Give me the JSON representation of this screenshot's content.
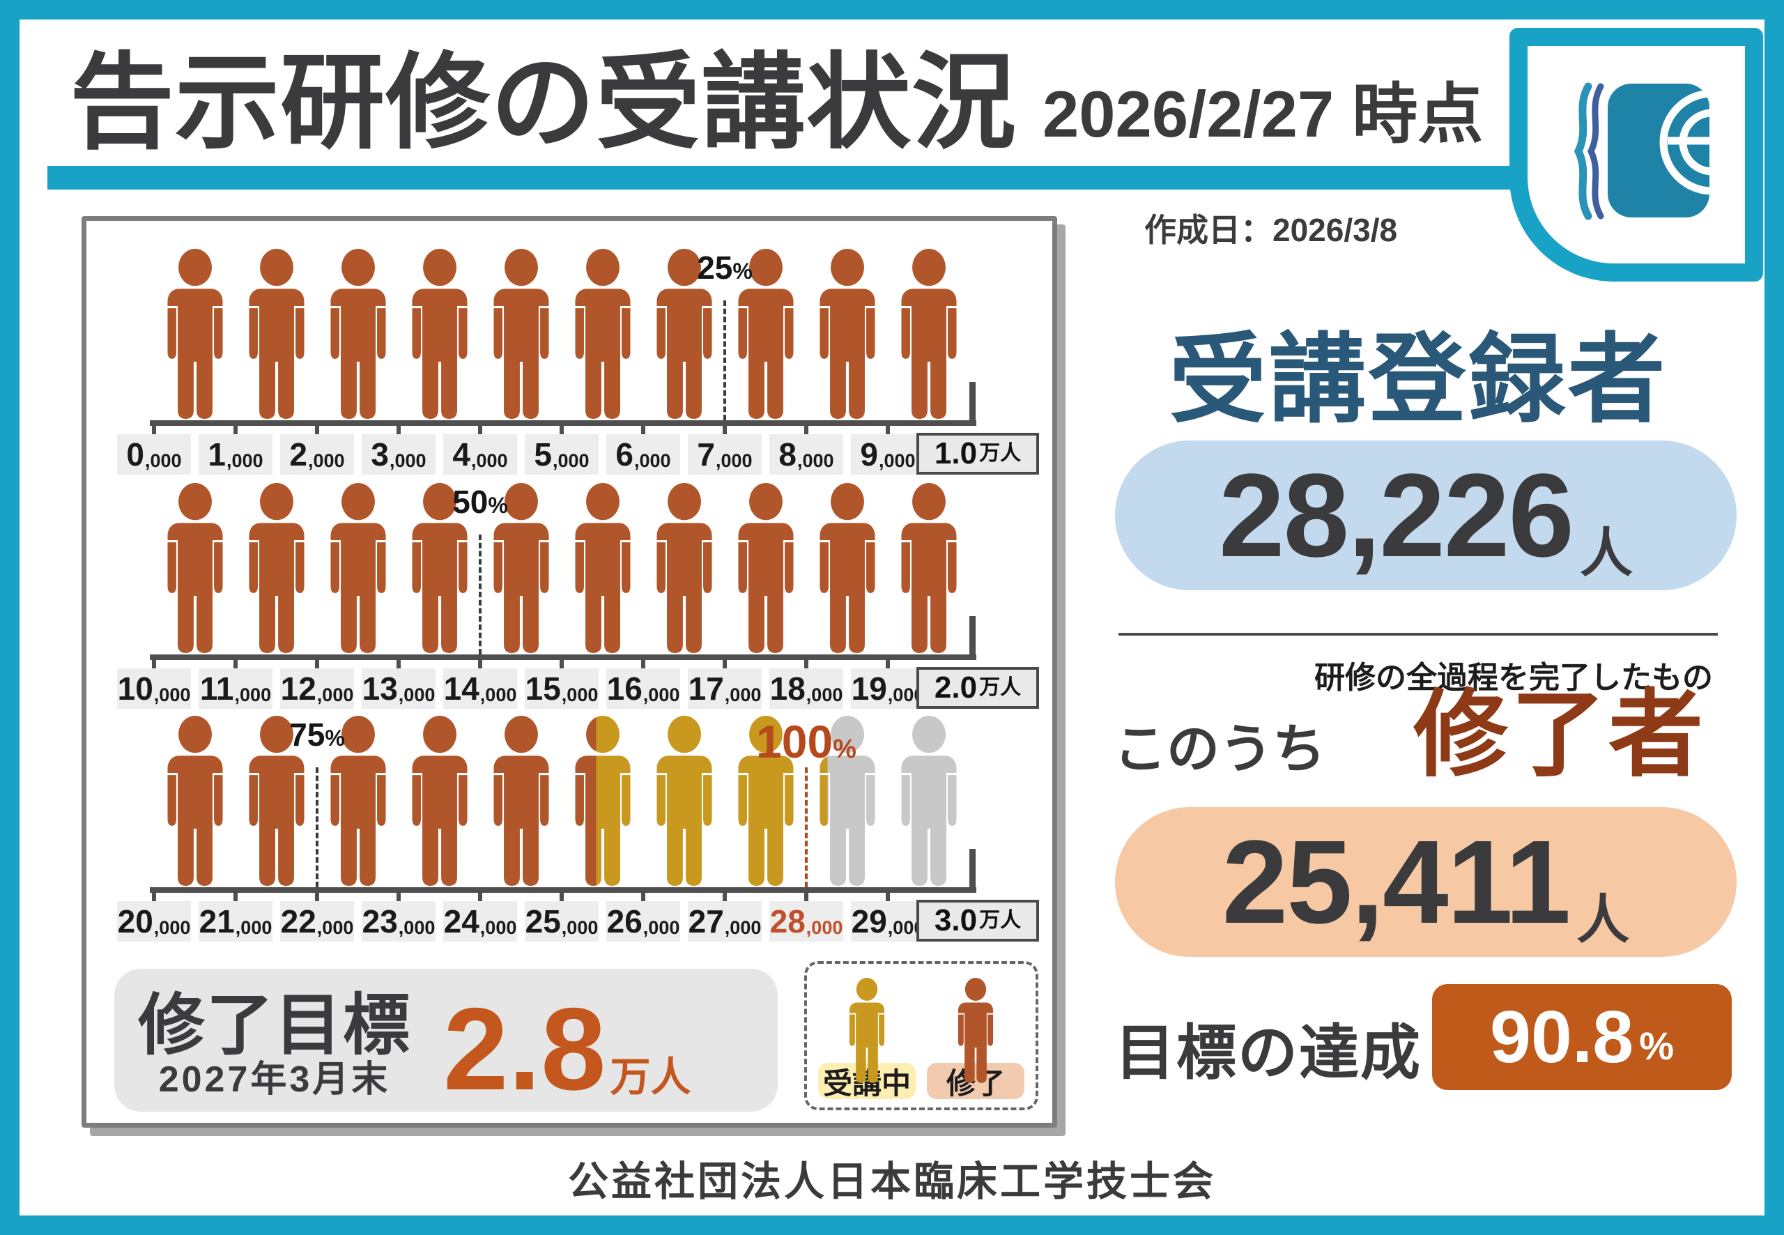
{
  "header": {
    "title": "告示研修の受講状況",
    "as_of": "2026/2/27 時点",
    "created": "作成日：2026/3/8"
  },
  "stats": {
    "registered": {
      "label": "受講登録者",
      "value": "28,226",
      "unit": "人"
    },
    "completed": {
      "note": "研修の全過程を完了したもの",
      "prefix": "このうち",
      "label": "修了者",
      "value": "25,411",
      "unit": "人"
    },
    "achievement": {
      "label": "目標の達成",
      "value": "90.8",
      "unit": "%"
    }
  },
  "goal_box": {
    "title": "修了目標",
    "deadline": "2027年3月末",
    "value": "2.8",
    "unit": "万人"
  },
  "legend": {
    "in_progress": "受講中",
    "completed": "修了"
  },
  "footer": {
    "org": "公益社団法人日本臨床工学技士会"
  },
  "chart_data": {
    "type": "pictograph",
    "unit_per_icon": 1000,
    "completed": 25411,
    "registered": 28226,
    "goal": 28000,
    "icon_colors": {
      "completed": "#b0562a",
      "in_progress": "#c8981f",
      "none": "#c8c8c8"
    },
    "rows": [
      {
        "start": 0,
        "tick_labels": [
          "0,000",
          "1,000",
          "2,000",
          "3,000",
          "4,000",
          "5,000",
          "6,000",
          "7,000",
          "8,000",
          "9,000"
        ],
        "end_label": "1.0万人",
        "markers": [
          {
            "label": "25%",
            "value": 7000,
            "accent": false
          }
        ]
      },
      {
        "start": 10000,
        "tick_labels": [
          "10,000",
          "11,000",
          "12,000",
          "13,000",
          "14,000",
          "15,000",
          "16,000",
          "17,000",
          "18,000",
          "19,000"
        ],
        "end_label": "2.0万人",
        "markers": [
          {
            "label": "50%",
            "value": 14000,
            "accent": false
          }
        ]
      },
      {
        "start": 20000,
        "tick_labels": [
          "20,000",
          "21,000",
          "22,000",
          "23,000",
          "24,000",
          "25,000",
          "26,000",
          "27,000",
          "28,000",
          "29,000"
        ],
        "end_label": "3.0万人",
        "accent_tick": "28,000",
        "markers": [
          {
            "label": "75%",
            "value": 22000,
            "accent": false
          },
          {
            "label": "100%",
            "value": 28000,
            "accent": true
          }
        ]
      }
    ]
  },
  "colors": {
    "frame": "#18a2c6",
    "title": "#3b3b3d",
    "blue_heading": "#2a5878",
    "blue_pill": "#c3d9ed",
    "brown_heading": "#8e3a16",
    "peach_pill": "#f6c9a4",
    "badge": "#c05a1b",
    "badge_text": "#ffffff",
    "accent_orange": "#c4571e",
    "marker": "#3a3a3a",
    "marker_accent": "#b5491c",
    "tick_accent": "#c1502a",
    "axis": "#4f4f4f",
    "tick_box": "#ededed",
    "panel_border": "#7d7d7d",
    "number_dark": "#3b3b3d",
    "goal_box_bg": "#e6e6e6",
    "legend_in_progress_bg": "#fdeeb2",
    "legend_completed_bg": "#f2cbae"
  }
}
